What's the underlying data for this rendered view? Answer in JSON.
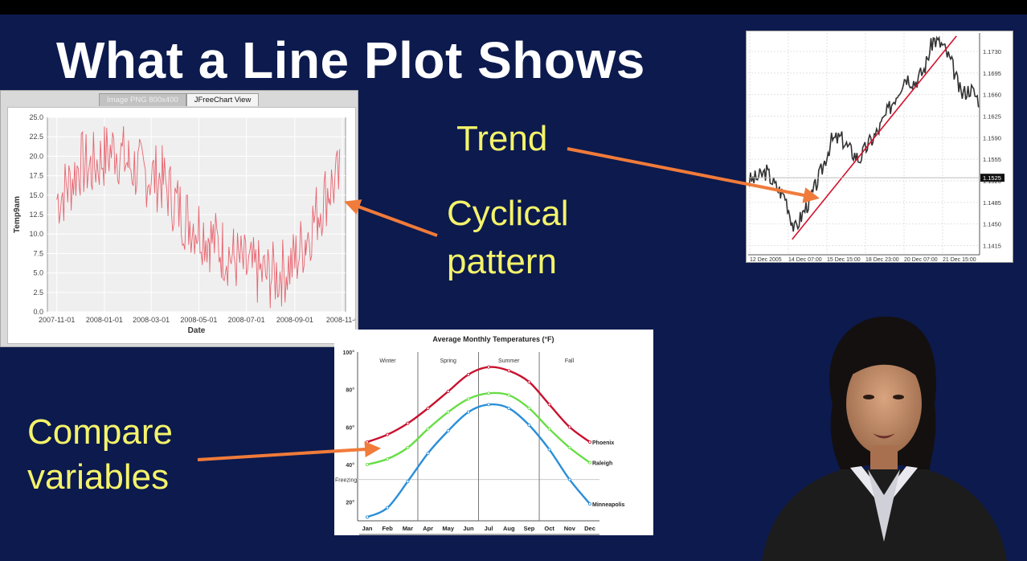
{
  "slide": {
    "title": "What a Line Plot Shows",
    "callouts": {
      "trend": "Trend",
      "cyclical_line1": "Cyclical",
      "cyclical_line2": "pattern",
      "compare_line1": "Compare",
      "compare_line2": "variables"
    },
    "colors": {
      "background": "#0c1a4e",
      "title": "#ffffff",
      "callout": "#f4f36a",
      "arrow": "#f07b3a"
    }
  },
  "panels": {
    "jfreechart": {
      "tabs": [
        {
          "label": "Image PNG 800x400",
          "active": false
        },
        {
          "label": "JFreeChart View",
          "active": true
        }
      ]
    },
    "forex": {
      "current_price_label": "1.1525"
    }
  },
  "chart_data": [
    {
      "id": "temp9am",
      "type": "line",
      "title": "",
      "xlabel": "Date",
      "ylabel": "Temp9am",
      "ylim": [
        0,
        25
      ],
      "y_ticks": [
        "0.0",
        "2.5",
        "5.0",
        "7.5",
        "10.0",
        "12.5",
        "15.0",
        "17.5",
        "20.0",
        "22.5",
        "25.0"
      ],
      "x_ticks": [
        "2007-11-01",
        "2008-01-01",
        "2008-03-01",
        "2008-05-01",
        "2008-07-01",
        "2008-09-01",
        "2008-11-0"
      ],
      "grid": true,
      "line_color": "#e8646f",
      "series": [
        {
          "x": [
            "2007-11-01",
            "2007-11-15",
            "2007-12-01",
            "2007-12-15",
            "2008-01-01",
            "2008-01-15",
            "2008-02-01",
            "2008-02-15",
            "2008-03-01",
            "2008-03-15",
            "2008-04-01",
            "2008-04-15",
            "2008-05-01",
            "2008-05-15",
            "2008-06-01",
            "2008-06-15",
            "2008-07-01",
            "2008-07-15",
            "2008-08-01",
            "2008-08-15",
            "2008-09-01",
            "2008-09-15",
            "2008-10-01",
            "2008-10-15",
            "2008-10-30"
          ],
          "values": [
            14.5,
            16.0,
            19.0,
            18.5,
            20.0,
            21.0,
            19.0,
            18.0,
            17.5,
            17.0,
            14.0,
            12.0,
            11.0,
            9.5,
            8.0,
            7.0,
            5.5,
            5.0,
            4.5,
            5.0,
            6.5,
            9.5,
            13.0,
            16.0,
            17.0
          ]
        }
      ]
    },
    {
      "id": "forex",
      "type": "line",
      "title": "",
      "ylim": [
        1.14,
        1.176
      ],
      "y_ticks": [
        "1.1730",
        "1.1695",
        "1.1660",
        "1.1625",
        "1.1590",
        "1.1555",
        "1.1520",
        "1.1485",
        "1.1450",
        "1.1415"
      ],
      "x_ticks": [
        "12 Dec 2005",
        "14 Dec 07:00",
        "15 Dec 15:00",
        "18 Dec 23:00",
        "20 Dec 07:00",
        "21 Dec 15:00"
      ],
      "grid": true,
      "series": [
        {
          "name": "price",
          "x": [
            0,
            4,
            8,
            12,
            16,
            20,
            24,
            28,
            32,
            36,
            40,
            44,
            48,
            52,
            56,
            60,
            64,
            68,
            72,
            76,
            80,
            84,
            88,
            92,
            96,
            100
          ],
          "values": [
            1.152,
            1.1525,
            1.1535,
            1.151,
            1.1495,
            1.144,
            1.147,
            1.15,
            1.154,
            1.1585,
            1.159,
            1.157,
            1.1555,
            1.158,
            1.16,
            1.163,
            1.166,
            1.169,
            1.168,
            1.17,
            1.175,
            1.174,
            1.171,
            1.166,
            1.167,
            1.165
          ]
        },
        {
          "name": "trend",
          "x": [
            19,
            90
          ],
          "values": [
            1.1425,
            1.1755
          ]
        }
      ]
    },
    {
      "id": "avg_temps",
      "type": "line",
      "title": "Average Monthly Temperatures (°F)",
      "categories": [
        "Jan",
        "Feb",
        "Mar",
        "Apr",
        "May",
        "Jun",
        "Jul",
        "Aug",
        "Sep",
        "Oct",
        "Nov",
        "Dec"
      ],
      "ylim": [
        10,
        100
      ],
      "y_ticks": [
        "100°",
        "80°",
        "60°",
        "40°",
        "20°"
      ],
      "reference_line": {
        "label": "Freezing",
        "value": 32
      },
      "season_labels": [
        "Winter",
        "Spring",
        "Summer",
        "Fall"
      ],
      "season_dividers_after": [
        "Mar",
        "Jun",
        "Sep"
      ],
      "series": [
        {
          "name": "Phoenix",
          "color": "#c8102e",
          "values": [
            52,
            56,
            62,
            70,
            79,
            88,
            92,
            90,
            84,
            72,
            60,
            52
          ]
        },
        {
          "name": "Raleigh",
          "color": "#66dd44",
          "values": [
            40,
            43,
            49,
            59,
            68,
            75,
            78,
            77,
            70,
            59,
            49,
            41
          ]
        },
        {
          "name": "Minneapolis",
          "color": "#2a8ed8",
          "values": [
            12,
            17,
            31,
            46,
            58,
            68,
            72,
            70,
            61,
            48,
            32,
            19
          ]
        }
      ]
    }
  ]
}
